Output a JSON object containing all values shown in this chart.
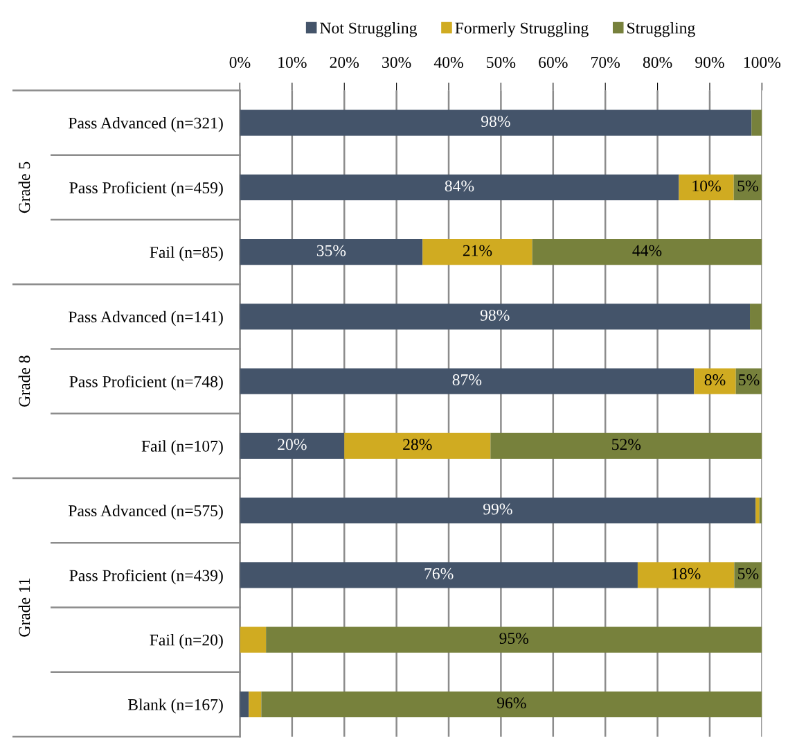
{
  "chart_data": {
    "type": "bar",
    "orientation": "horizontal",
    "stacked": true,
    "categories": [
      "Pass Advanced (n=321)",
      "Pass Proficient (n=459)",
      "Fail (n=85)",
      "Pass Advanced (n=141)",
      "Pass Proficient (n=748)",
      "Fail (n=107)",
      "Pass Advanced (n=575)",
      "Pass Proficient (n=439)",
      "Fail (n=20)",
      "Blank (n=167)"
    ],
    "series": [
      {
        "name": "Not Struggling",
        "color": "#44546a",
        "values": [
          98,
          84.1,
          35,
          97.7,
          87,
          20,
          98.8,
          76.2,
          0,
          1.7
        ],
        "value_labels": [
          "98%",
          "84%",
          "35%",
          "98%",
          "87%",
          "20%",
          "99%",
          "76%",
          null,
          null
        ]
      },
      {
        "name": "Formerly Struggling",
        "color": "#d0ab21",
        "values": [
          0,
          10.5,
          21,
          0,
          8,
          28,
          0.7,
          18.5,
          5,
          2.4
        ],
        "value_labels": [
          null,
          "10%",
          "21%",
          null,
          "8%",
          "28%",
          null,
          "18%",
          null,
          null
        ]
      },
      {
        "name": "Struggling",
        "color": "#77813c",
        "values": [
          2,
          5.4,
          44,
          2.3,
          5,
          52,
          0.5,
          5.3,
          95,
          95.9
        ],
        "value_labels": [
          null,
          "5%",
          "44%",
          null,
          "5%",
          "52%",
          null,
          "5%",
          "95%",
          "96%"
        ]
      }
    ],
    "xlim": [
      0,
      100
    ],
    "xticks": [
      {
        "value": 0,
        "label": "0%"
      },
      {
        "value": 10,
        "label": "10%"
      },
      {
        "value": 20,
        "label": "20%"
      },
      {
        "value": 30,
        "label": "30%"
      },
      {
        "value": 40,
        "label": "40%"
      },
      {
        "value": 50,
        "label": "50%"
      },
      {
        "value": 60,
        "label": "60%"
      },
      {
        "value": 70,
        "label": "70%"
      },
      {
        "value": 80,
        "label": "80%"
      },
      {
        "value": 90,
        "label": "90%"
      },
      {
        "value": 100,
        "label": "100%"
      }
    ],
    "grid": "x",
    "legend": "top",
    "annotations": [
      "Grade 5",
      "Grade 8",
      "Grade 11"
    ]
  }
}
